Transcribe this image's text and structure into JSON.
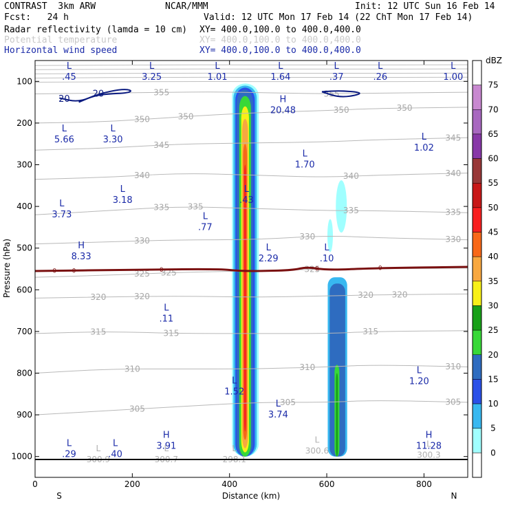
{
  "header": {
    "model": "CONTRAST  3km ARW",
    "org": "NCAR/MMM",
    "init": "Init: 12 UTC Sun 16 Feb 14",
    "fcst": "Fcst:   24 h",
    "valid": "Valid: 12 UTC Mon 17 Feb 14 (22 ChT Mon 17 Feb 14)",
    "fields": [
      {
        "name": "Radar reflectivity (lamda = 10 cm)",
        "xy": "XY= 400.0,100.0 to 400.0,400.0",
        "style": "black"
      },
      {
        "name": "Potential temperature",
        "xy": "XY= 400.0,100.0 to 400.0,400.0",
        "style": "gray"
      },
      {
        "name": "Horizontal wind speed",
        "xy": "XY= 400.0,100.0 to 400.0,400.0",
        "style": "blue"
      }
    ]
  },
  "chart_data": {
    "type": "heatmap",
    "xlabel": "Distance (km)",
    "ylabel": "Pressure (hPa)",
    "x_ticks": [
      0,
      200,
      400,
      600,
      800
    ],
    "y_ticks": [
      100,
      200,
      300,
      400,
      500,
      600,
      700,
      800,
      900,
      1000
    ],
    "xlim": [
      0,
      890
    ],
    "ylim": [
      1050,
      50
    ],
    "x_end_labels": {
      "left": "S",
      "right": "N"
    },
    "colorbar": {
      "unit": "dBZ",
      "levels": [
        0,
        5,
        10,
        15,
        20,
        25,
        30,
        35,
        40,
        45,
        50,
        55,
        60,
        65,
        70,
        75
      ],
      "colors": [
        "#ffffff",
        "#a0ffff",
        "#38b8f0",
        "#2a50e8",
        "#2e6cc0",
        "#38d838",
        "#18a018",
        "#f8f018",
        "#f8a840",
        "#f86818",
        "#f82020",
        "#c81818",
        "#983838",
        "#8838a8",
        "#a868c0",
        "#c888d0"
      ]
    },
    "theta_contours": [
      {
        "label": "355",
        "points": [
          [
            0,
            130
          ],
          [
            150,
            128
          ],
          [
            350,
            125
          ],
          [
            480,
            127
          ],
          [
            600,
            130
          ],
          [
            700,
            128
          ],
          [
            890,
            126
          ]
        ],
        "label_x": [
          260,
          610
        ]
      },
      {
        "label": "350",
        "points": [
          [
            0,
            200
          ],
          [
            150,
            197
          ],
          [
            300,
            185
          ],
          [
            450,
            175
          ],
          [
            600,
            170
          ],
          [
            700,
            165
          ],
          [
            890,
            162
          ]
        ],
        "label_x": [
          220,
          310,
          630,
          760
        ]
      },
      {
        "label": "345",
        "points": [
          [
            0,
            265
          ],
          [
            150,
            260
          ],
          [
            300,
            250
          ],
          [
            450,
            248
          ],
          [
            600,
            245
          ],
          [
            700,
            240
          ],
          [
            890,
            235
          ]
        ],
        "label_x": [
          260,
          860
        ]
      },
      {
        "label": "340",
        "points": [
          [
            0,
            335
          ],
          [
            150,
            330
          ],
          [
            300,
            320
          ],
          [
            450,
            325
          ],
          [
            600,
            330
          ],
          [
            700,
            325
          ],
          [
            890,
            320
          ]
        ],
        "label_x": [
          220,
          650,
          860
        ]
      },
      {
        "label": "335",
        "points": [
          [
            0,
            420
          ],
          [
            150,
            410
          ],
          [
            300,
            400
          ],
          [
            450,
            405
          ],
          [
            600,
            410
          ],
          [
            700,
            410
          ],
          [
            890,
            415
          ]
        ],
        "label_x": [
          260,
          330,
          650,
          860
        ]
      },
      {
        "label": "330",
        "points": [
          [
            0,
            490
          ],
          [
            150,
            485
          ],
          [
            300,
            480
          ],
          [
            450,
            480
          ],
          [
            600,
            470
          ],
          [
            700,
            475
          ],
          [
            890,
            480
          ]
        ],
        "label_x": [
          220,
          560,
          860
        ]
      },
      {
        "label": "325",
        "points": [
          [
            0,
            570
          ],
          [
            150,
            565
          ],
          [
            300,
            558
          ],
          [
            450,
            555
          ],
          [
            600,
            550
          ],
          [
            700,
            550
          ],
          [
            890,
            548
          ]
        ],
        "label_x": [
          220,
          275,
          570
        ]
      },
      {
        "label": "320",
        "points": [
          [
            0,
            620
          ],
          [
            150,
            617
          ],
          [
            300,
            615
          ],
          [
            450,
            618
          ],
          [
            600,
            615
          ],
          [
            700,
            612
          ],
          [
            890,
            610
          ]
        ],
        "label_x": [
          130,
          220,
          680,
          750
        ]
      },
      {
        "label": "315",
        "points": [
          [
            0,
            705
          ],
          [
            150,
            700
          ],
          [
            300,
            705
          ],
          [
            450,
            705
          ],
          [
            600,
            705
          ],
          [
            700,
            700
          ],
          [
            890,
            698
          ]
        ],
        "label_x": [
          130,
          280,
          690
        ]
      },
      {
        "label": "310",
        "points": [
          [
            0,
            800
          ],
          [
            150,
            790
          ],
          [
            300,
            790
          ],
          [
            450,
            790
          ],
          [
            600,
            785
          ],
          [
            700,
            780
          ],
          [
            890,
            785
          ]
        ],
        "label_x": [
          200,
          560,
          860
        ]
      },
      {
        "label": "305",
        "points": [
          [
            0,
            900
          ],
          [
            150,
            890
          ],
          [
            300,
            880
          ],
          [
            450,
            870
          ],
          [
            600,
            870
          ],
          [
            700,
            865
          ],
          [
            890,
            870
          ]
        ],
        "label_x": [
          210,
          520,
          860
        ]
      }
    ],
    "wind_contours": [
      {
        "label": "20",
        "points": [
          [
            50,
            140
          ],
          [
            90,
            150
          ],
          [
            130,
            130
          ],
          [
            180,
            118
          ],
          [
            200,
            122
          ],
          [
            190,
            128
          ],
          [
            150,
            130
          ],
          [
            120,
            135
          ],
          [
            90,
            150
          ]
        ],
        "label_x": [
          60,
          130
        ]
      },
      {
        "label": "20",
        "points": [
          [
            590,
            125
          ],
          [
            630,
            140
          ],
          [
            680,
            128
          ],
          [
            630,
            122
          ],
          [
            590,
            125
          ]
        ],
        "label_x": []
      }
    ],
    "zero_line": {
      "label": "0",
      "points": [
        [
          0,
          555
        ],
        [
          200,
          552
        ],
        [
          380,
          550
        ],
        [
          420,
          555
        ],
        [
          470,
          555
        ],
        [
          530,
          553
        ],
        [
          560,
          545
        ],
        [
          600,
          553
        ],
        [
          700,
          548
        ],
        [
          890,
          545
        ]
      ],
      "label_x": [
        40,
        80,
        260,
        580,
        710
      ]
    },
    "wind_extrema": [
      {
        "type": "L",
        "value": ".45",
        "x": 70,
        "p": 80
      },
      {
        "type": "L",
        "value": "3.25",
        "x": 240,
        "p": 80
      },
      {
        "type": "L",
        "value": "1.01",
        "x": 375,
        "p": 80
      },
      {
        "type": "L",
        "value": "1.64",
        "x": 505,
        "p": 80
      },
      {
        "type": "L",
        "value": ".37",
        "x": 620,
        "p": 80
      },
      {
        "type": "L",
        "value": ".26",
        "x": 710,
        "p": 80
      },
      {
        "type": "L",
        "value": "1.00",
        "x": 860,
        "p": 80
      },
      {
        "type": "H",
        "value": "20.48",
        "x": 510,
        "p": 160
      },
      {
        "type": "L",
        "value": "5.66",
        "x": 60,
        "p": 230
      },
      {
        "type": "L",
        "value": "3.30",
        "x": 160,
        "p": 230
      },
      {
        "type": "L",
        "value": "1.02",
        "x": 800,
        "p": 250
      },
      {
        "type": "L",
        "value": "1.70",
        "x": 555,
        "p": 290
      },
      {
        "type": "L",
        "value": "3.18",
        "x": 180,
        "p": 375
      },
      {
        "type": "L",
        "value": ".43",
        "x": 435,
        "p": 375
      },
      {
        "type": "L",
        "value": "3.73",
        "x": 55,
        "p": 410
      },
      {
        "type": "L",
        "value": ".77",
        "x": 350,
        "p": 440
      },
      {
        "type": "H",
        "value": "8.33",
        "x": 95,
        "p": 510
      },
      {
        "type": "L",
        "value": "2.29",
        "x": 480,
        "p": 515
      },
      {
        "type": "L",
        "value": ".10",
        "x": 600,
        "p": 515
      },
      {
        "type": "L",
        "value": ".11",
        "x": 270,
        "p": 660
      },
      {
        "type": "L",
        "value": "1.20",
        "x": 790,
        "p": 810
      },
      {
        "type": "L",
        "value": "1.52",
        "x": 410,
        "p": 835
      },
      {
        "type": "L",
        "value": "3.74",
        "x": 500,
        "p": 890
      },
      {
        "type": "L",
        "value": ".29",
        "x": 70,
        "p": 985
      },
      {
        "type": "L",
        "value": ".40",
        "x": 165,
        "p": 985
      },
      {
        "type": "H",
        "value": "3.91",
        "x": 270,
        "p": 965
      },
      {
        "type": "H",
        "value": "11.28",
        "x": 810,
        "p": 965
      }
    ],
    "theta_extrema": [
      {
        "type": "L",
        "value": "300.9",
        "x": 130,
        "p": 1010
      },
      {
        "type": "L",
        "value": "300.7",
        "x": 270,
        "p": 1010
      },
      {
        "type": "L",
        "value": "298.1",
        "x": 410,
        "p": 1010
      },
      {
        "type": "L",
        "value": "300.6",
        "x": 580,
        "p": 990
      },
      {
        "type": "L",
        "value": "300.3",
        "x": 810,
        "p": 1000
      }
    ]
  }
}
